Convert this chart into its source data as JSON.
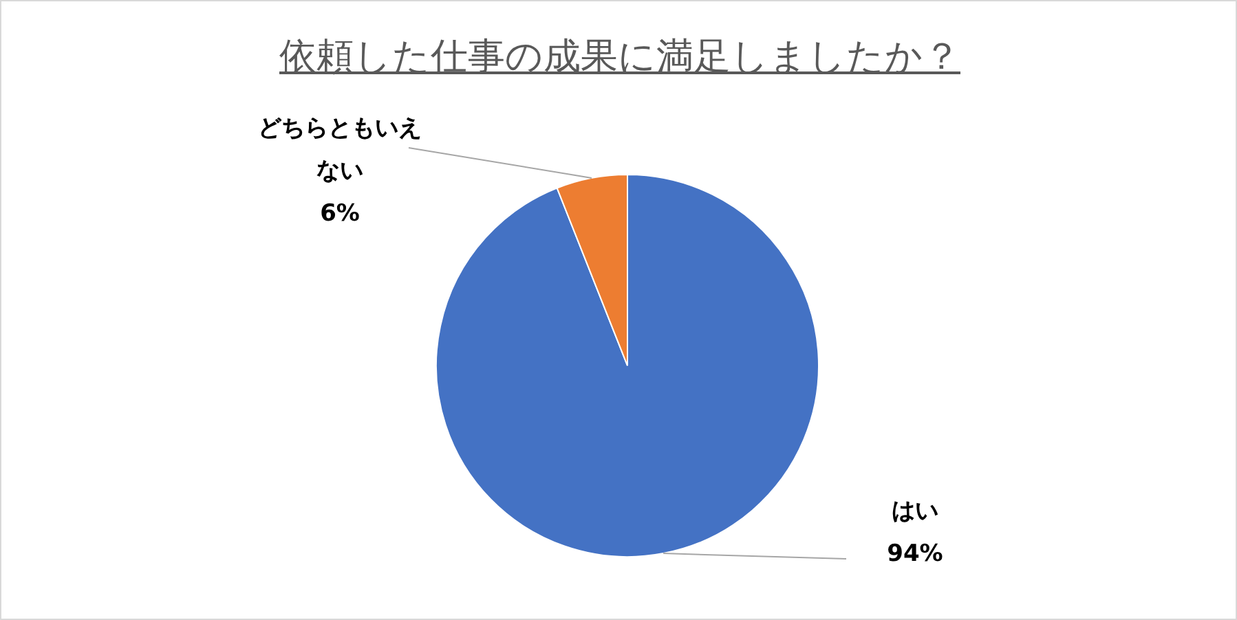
{
  "chart_data": {
    "type": "pie",
    "title": "依頼した仕事の成果に満足しましたか？",
    "categories": [
      "はい",
      "どちらともいえない"
    ],
    "values": [
      94,
      6
    ],
    "colors": [
      "#4472c4",
      "#ed7d31"
    ],
    "value_labels": [
      "94%",
      "6%"
    ]
  }
}
